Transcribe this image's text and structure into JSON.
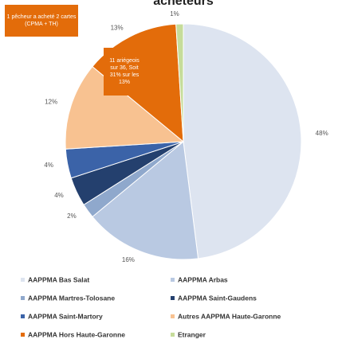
{
  "chart_data": {
    "type": "pie",
    "title": "acheteurs",
    "categories": [
      "AAPPMA Bas Salat",
      "AAPPMA Arbas",
      "AAPPMA Martres-Tolosane",
      "AAPPMA Saint-Gaudens",
      "AAPPMA Saint-Martory",
      "Autres AAPPMA Haute-Garonne",
      "AAPPMA Hors Haute-Garonne",
      "Etranger"
    ],
    "values": [
      48,
      16,
      2,
      4,
      4,
      12,
      13,
      1
    ],
    "value_labels": [
      "48%",
      "16%",
      "2%",
      "4%",
      "4%",
      "12%",
      "13%",
      "1%"
    ],
    "colors": [
      "#dde4f0",
      "#b9c9e2",
      "#8fa8cc",
      "#24406e",
      "#3b63a8",
      "#f8c291",
      "#e36c0a",
      "#c6dc9a"
    ],
    "annotations": [
      "1 pêcheur a acheté 2 cartes (CPMA + TH)",
      "11 ariégeois sur 36, Soit 31% sur les 13%"
    ]
  }
}
